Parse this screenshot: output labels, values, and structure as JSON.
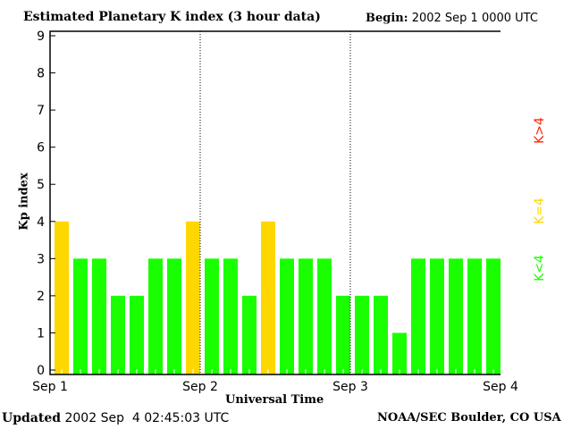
{
  "chart_data": {
    "type": "bar",
    "title": "Estimated Planetary K index (3 hour data)",
    "begin_label": "Begin:",
    "begin_value": "2002 Sep 1 0000 UTC",
    "xlabel": "Universal Time",
    "ylabel": "Kp index",
    "ylim": [
      0,
      9
    ],
    "yticks": [
      "0",
      "1",
      "2",
      "3",
      "4",
      "5",
      "6",
      "7",
      "8",
      "9"
    ],
    "xticks": [
      "Sep 1",
      "Sep 2",
      "Sep 3",
      "Sep 4"
    ],
    "interval_hours": 3,
    "values": [
      4,
      3,
      3,
      2,
      2,
      3,
      3,
      4,
      3,
      3,
      2,
      4,
      3,
      3,
      3,
      2,
      2,
      2,
      1,
      3,
      3,
      3,
      3,
      3
    ],
    "legend": [
      {
        "label": "K<4",
        "color": "#19ff00"
      },
      {
        "label": "K=4",
        "color": "#ffd700"
      },
      {
        "label": "K>4",
        "color": "#ff2000"
      }
    ],
    "grid": false,
    "legend_placement": "right"
  },
  "footer": {
    "updated_label": "Updated",
    "updated_value": "2002 Sep  4 02:45:03 UTC",
    "source": "NOAA/SEC Boulder, CO USA"
  }
}
